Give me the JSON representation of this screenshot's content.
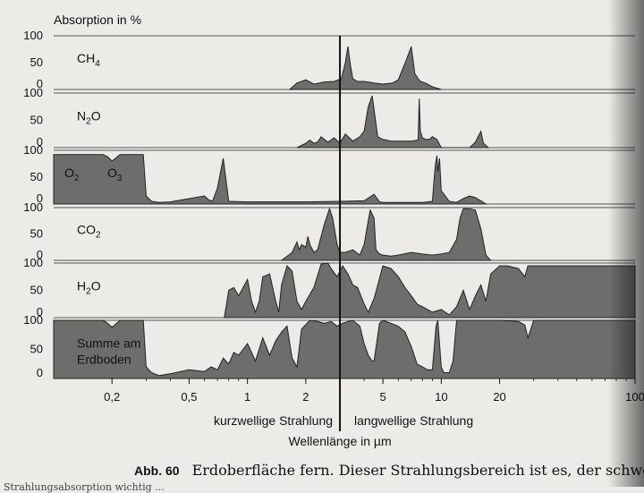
{
  "chart_data": {
    "type": "area",
    "title": "Absorption in %",
    "xlabel": "Wellenlänge in µm",
    "x_scale": "log",
    "xlim": [
      0.1,
      100
    ],
    "x_ticks": [
      {
        "value": 0.2,
        "label": "0,2"
      },
      {
        "value": 0.5,
        "label": "0,5"
      },
      {
        "value": 1,
        "label": "1"
      },
      {
        "value": 2,
        "label": "2"
      },
      {
        "value": 5,
        "label": "5"
      },
      {
        "value": 10,
        "label": "10"
      },
      {
        "value": 20,
        "label": "20"
      },
      {
        "value": 100,
        "label": "100"
      }
    ],
    "ylim": [
      0,
      100
    ],
    "y_ticks": [
      "100",
      "50",
      "0"
    ],
    "divider_label_left": "kurzwellige Strahlung",
    "divider_label_right": "langwellige Strahlung",
    "divider_at": 3,
    "fill_color": "#6d6d6b",
    "panels": [
      {
        "label": "CH",
        "sub": "4",
        "label2": "",
        "x": [
          1.65,
          1.8,
          2.0,
          2.2,
          2.5,
          2.8,
          3.05,
          3.2,
          3.3,
          3.4,
          3.5,
          3.7,
          4.0,
          4.5,
          5.0,
          5.6,
          6.0,
          6.6,
          7.0,
          7.3,
          7.6,
          7.8,
          8.0,
          8.5,
          9.0,
          10.0
        ],
        "y": [
          0,
          12,
          18,
          10,
          14,
          15,
          20,
          50,
          80,
          45,
          20,
          15,
          15,
          12,
          10,
          12,
          18,
          55,
          80,
          30,
          20,
          15,
          14,
          10,
          5,
          0
        ]
      },
      {
        "label": "N",
        "sub": "2",
        "label2": "O",
        "x": [
          1.8,
          2.0,
          2.1,
          2.2,
          2.3,
          2.4,
          2.6,
          2.8,
          3.0,
          3.2,
          3.5,
          3.8,
          4.0,
          4.2,
          4.4,
          4.5,
          4.7,
          5.0,
          5.5,
          6.0,
          6.5,
          7.0,
          7.6,
          7.7,
          7.8,
          8.0,
          8.3,
          8.7,
          9.0,
          9.5,
          10.0,
          14.0,
          15.0,
          16.0,
          16.5,
          17.0,
          17.5
        ],
        "y": [
          0,
          8,
          14,
          8,
          10,
          20,
          10,
          18,
          8,
          25,
          12,
          20,
          30,
          75,
          95,
          70,
          20,
          15,
          12,
          12,
          12,
          12,
          14,
          90,
          30,
          18,
          15,
          15,
          20,
          15,
          0,
          0,
          10,
          30,
          8,
          4,
          0
        ]
      },
      {
        "label": "O",
        "sub": "2",
        "label2": "O3",
        "x": [
          0.1,
          0.18,
          0.19,
          0.2,
          0.21,
          0.22,
          0.29,
          0.3,
          0.32,
          0.35,
          0.4,
          0.5,
          0.6,
          0.63,
          0.66,
          0.7,
          0.75,
          0.8,
          1.0,
          2.0,
          3.0,
          4.0,
          4.5,
          4.8,
          5.0,
          6.0,
          8.0,
          9.0,
          9.3,
          9.5,
          9.6,
          9.8,
          10.0,
          11.0,
          12.0,
          13.0,
          14.0,
          15.0,
          17.0
        ],
        "y": [
          92,
          92,
          88,
          80,
          86,
          92,
          92,
          15,
          5,
          3,
          4,
          10,
          15,
          8,
          5,
          30,
          85,
          5,
          4,
          4,
          5,
          6,
          18,
          4,
          3,
          3,
          3,
          5,
          70,
          90,
          60,
          85,
          25,
          5,
          3,
          10,
          15,
          12,
          0
        ]
      },
      {
        "label": "CO",
        "sub": "2",
        "label2": "",
        "x": [
          1.5,
          1.7,
          1.8,
          1.85,
          1.9,
          2.0,
          2.05,
          2.1,
          2.2,
          2.3,
          2.5,
          2.65,
          2.75,
          2.9,
          3.0,
          3.2,
          3.5,
          3.8,
          4.0,
          4.2,
          4.3,
          4.5,
          4.6,
          4.8,
          5.0,
          5.5,
          6.0,
          7.0,
          8.0,
          9.0,
          10.0,
          11.0,
          12.0,
          12.5,
          13.0,
          14.0,
          15.0,
          16.0,
          17.0,
          17.5,
          18.0
        ],
        "y": [
          0,
          15,
          35,
          20,
          30,
          25,
          45,
          30,
          15,
          20,
          70,
          98,
          80,
          30,
          15,
          15,
          20,
          10,
          30,
          75,
          95,
          80,
          20,
          12,
          10,
          8,
          10,
          15,
          12,
          10,
          12,
          15,
          40,
          80,
          98,
          98,
          95,
          60,
          10,
          5,
          0
        ]
      },
      {
        "label": "H",
        "sub": "2",
        "label2": "O",
        "x": [
          0.76,
          0.8,
          0.85,
          0.9,
          0.95,
          1.0,
          1.05,
          1.1,
          1.15,
          1.2,
          1.3,
          1.4,
          1.45,
          1.5,
          1.6,
          1.7,
          1.8,
          1.9,
          2.0,
          2.2,
          2.4,
          2.6,
          2.7,
          2.9,
          3.1,
          3.3,
          3.5,
          3.7,
          4.0,
          4.2,
          4.5,
          5.0,
          5.5,
          6.0,
          6.5,
          7.0,
          7.5,
          8.0,
          9.0,
          10.0,
          11.0,
          12.0,
          13.0,
          14.0,
          15.0,
          16.0,
          17.0,
          18.0,
          20.0,
          22.0,
          25.0,
          27.0,
          28.0,
          30.0,
          40.0,
          60.0,
          100.0
        ],
        "y": [
          0,
          50,
          55,
          40,
          55,
          70,
          30,
          10,
          30,
          75,
          80,
          30,
          10,
          60,
          95,
          85,
          30,
          15,
          30,
          55,
          98,
          100,
          90,
          75,
          95,
          80,
          60,
          55,
          25,
          10,
          35,
          95,
          90,
          75,
          55,
          40,
          25,
          20,
          10,
          15,
          5,
          20,
          50,
          15,
          40,
          60,
          30,
          80,
          95,
          95,
          90,
          75,
          95,
          95,
          95,
          95,
          95
        ]
      },
      {
        "label": "Summe am",
        "sub": "",
        "label2": "Erdboden",
        "x": [
          0.1,
          0.18,
          0.19,
          0.2,
          0.21,
          0.22,
          0.29,
          0.3,
          0.32,
          0.35,
          0.4,
          0.5,
          0.6,
          0.65,
          0.7,
          0.75,
          0.8,
          0.85,
          0.9,
          1.0,
          1.1,
          1.2,
          1.3,
          1.4,
          1.5,
          1.6,
          1.7,
          1.8,
          1.9,
          2.1,
          2.3,
          2.5,
          2.7,
          2.9,
          3.1,
          3.3,
          3.5,
          3.8,
          4.0,
          4.2,
          4.4,
          4.5,
          4.8,
          5.0,
          5.5,
          6.0,
          6.5,
          7.0,
          7.5,
          8.0,
          8.5,
          9.0,
          9.4,
          9.6,
          9.8,
          10.0,
          10.3,
          11.0,
          11.5,
          12.0,
          13.0,
          15.0,
          17.0,
          20.0,
          25.0,
          27.0,
          28.0,
          30.0,
          40.0,
          60.0,
          100.0
        ],
        "y": [
          100,
          100,
          95,
          88,
          94,
          100,
          100,
          20,
          10,
          5,
          8,
          15,
          12,
          20,
          15,
          35,
          25,
          45,
          40,
          60,
          30,
          70,
          40,
          65,
          80,
          90,
          35,
          20,
          85,
          100,
          98,
          95,
          98,
          90,
          95,
          98,
          100,
          90,
          60,
          40,
          30,
          30,
          95,
          100,
          95,
          90,
          80,
          55,
          25,
          20,
          15,
          15,
          90,
          100,
          60,
          20,
          10,
          10,
          30,
          100,
          100,
          100,
          100,
          100,
          98,
          92,
          70,
          100,
          100,
          100,
          100
        ]
      }
    ]
  },
  "caption": {
    "fig": "Abb. 60",
    "text": "Erdoberfläche fern. Dieser Strahlungsbereich ist es, der schwe",
    "cut_line": "Strahlungsabsorption wichtig ..."
  }
}
